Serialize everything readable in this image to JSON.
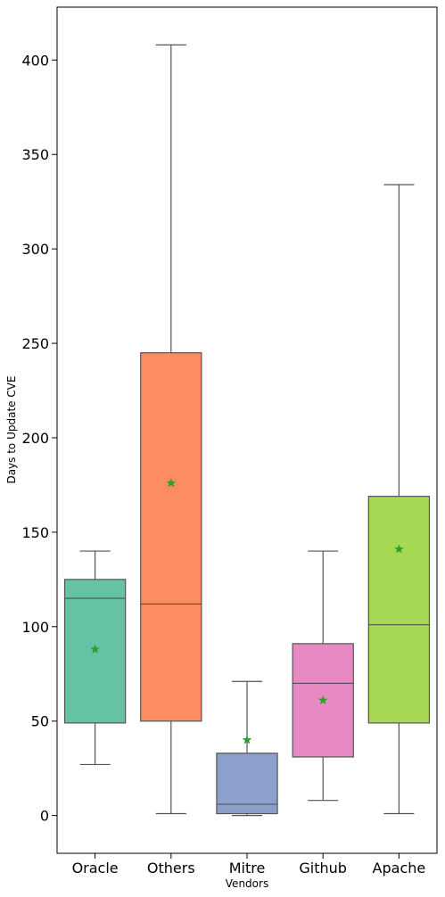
{
  "chart_data": {
    "type": "boxplot",
    "xlabel": "Vendors",
    "ylabel": "Days to Update CVE",
    "ylim": [
      -20,
      428
    ],
    "yticks": [
      0,
      50,
      100,
      150,
      200,
      250,
      300,
      350,
      400
    ],
    "grid": false,
    "categories": [
      "Oracle",
      "Others",
      "Mitre",
      "Github",
      "Apache"
    ],
    "boxes": [
      {
        "name": "Oracle",
        "whisker_low": 27,
        "q1": 49,
        "median": 115,
        "q3": 125,
        "whisker_high": 140,
        "mean": 88,
        "color": "#66c2a5"
      },
      {
        "name": "Others",
        "whisker_low": 1,
        "q1": 50,
        "median": 112,
        "q3": 245,
        "whisker_high": 408,
        "mean": 176,
        "color": "#fc8d62"
      },
      {
        "name": "Mitre",
        "whisker_low": 0,
        "q1": 1,
        "median": 6,
        "q3": 33,
        "whisker_high": 71,
        "mean": 40,
        "color": "#8da0cb"
      },
      {
        "name": "Github",
        "whisker_low": 8,
        "q1": 31,
        "median": 70,
        "q3": 91,
        "whisker_high": 140,
        "mean": 61,
        "color": "#e78ac3"
      },
      {
        "name": "Apache",
        "whisker_low": 1,
        "q1": 49,
        "median": 101,
        "q3": 169,
        "whisker_high": 334,
        "mean": 141,
        "color": "#a6d854"
      }
    ],
    "line_color": "#555555",
    "mean_marker_color": "#2ca02c"
  }
}
